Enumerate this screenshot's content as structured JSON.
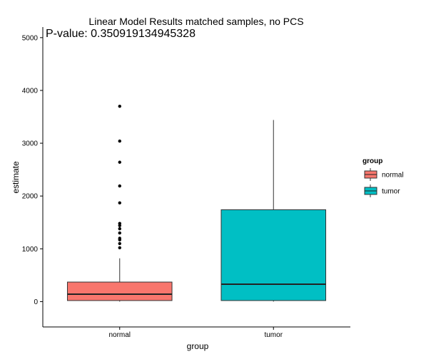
{
  "chart_data": {
    "type": "boxplot",
    "title": "Linear Model Results matched samples, no PCS",
    "subtitle": "P-value: 0.350919134945328",
    "xlabel": "group",
    "ylabel": "estimate",
    "ylim": [
      -480,
      5200
    ],
    "y_ticks": [
      0,
      1000,
      2000,
      3000,
      4000,
      5000
    ],
    "y_tick_labels": [
      "0",
      "1000",
      "2000",
      "3000",
      "4000",
      "5000"
    ],
    "categories": [
      "normal",
      "tumor"
    ],
    "grid": false,
    "legend": {
      "title": "group",
      "position": "right",
      "entries": [
        "normal",
        "tumor"
      ]
    },
    "series": [
      {
        "name": "normal",
        "color": "#f8766d",
        "whisker_low": 0,
        "q1": 20,
        "median": 140,
        "q3": 370,
        "whisker_high": 820,
        "outliers": [
          1020,
          1100,
          1170,
          1200,
          1300,
          1380,
          1440,
          1480,
          1870,
          2190,
          2640,
          3040,
          3700
        ]
      },
      {
        "name": "tumor",
        "color": "#00bfc4",
        "whisker_low": 0,
        "q1": 20,
        "median": 330,
        "q3": 1740,
        "whisker_high": 3440,
        "outliers": []
      }
    ]
  }
}
